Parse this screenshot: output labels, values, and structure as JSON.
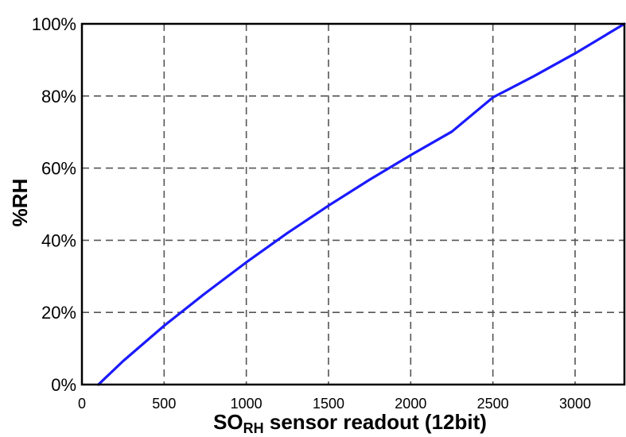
{
  "chart_data": {
    "type": "line",
    "title": "",
    "xlabel_main": "SO",
    "xlabel_sub": "RH",
    "xlabel_rest": " sensor readout (12bit)",
    "ylabel": "%RH",
    "xlim": [
      0,
      3300
    ],
    "ylim": [
      0,
      100
    ],
    "x_ticks": [
      0,
      500,
      1000,
      1500,
      2000,
      2500,
      3000
    ],
    "x_tick_labels": [
      "0",
      "500",
      "1000",
      "1500",
      "2000",
      "2500",
      "3000"
    ],
    "y_ticks": [
      0,
      20,
      40,
      60,
      80,
      100
    ],
    "y_tick_labels": [
      "0%",
      "20%",
      "40%",
      "60%",
      "80%",
      "100%"
    ],
    "grid": true,
    "series": [
      {
        "color": "#1a1aff",
        "x": [
          100,
          250,
          500,
          750,
          1000,
          1250,
          1500,
          1750,
          2000,
          2250,
          2500,
          2750,
          3000,
          3300
        ],
        "y": [
          0,
          6.5,
          16.3,
          25.3,
          33.9,
          42.0,
          49.6,
          56.8,
          63.6,
          70.1,
          79.6,
          85.5,
          91.8,
          100
        ]
      }
    ]
  }
}
